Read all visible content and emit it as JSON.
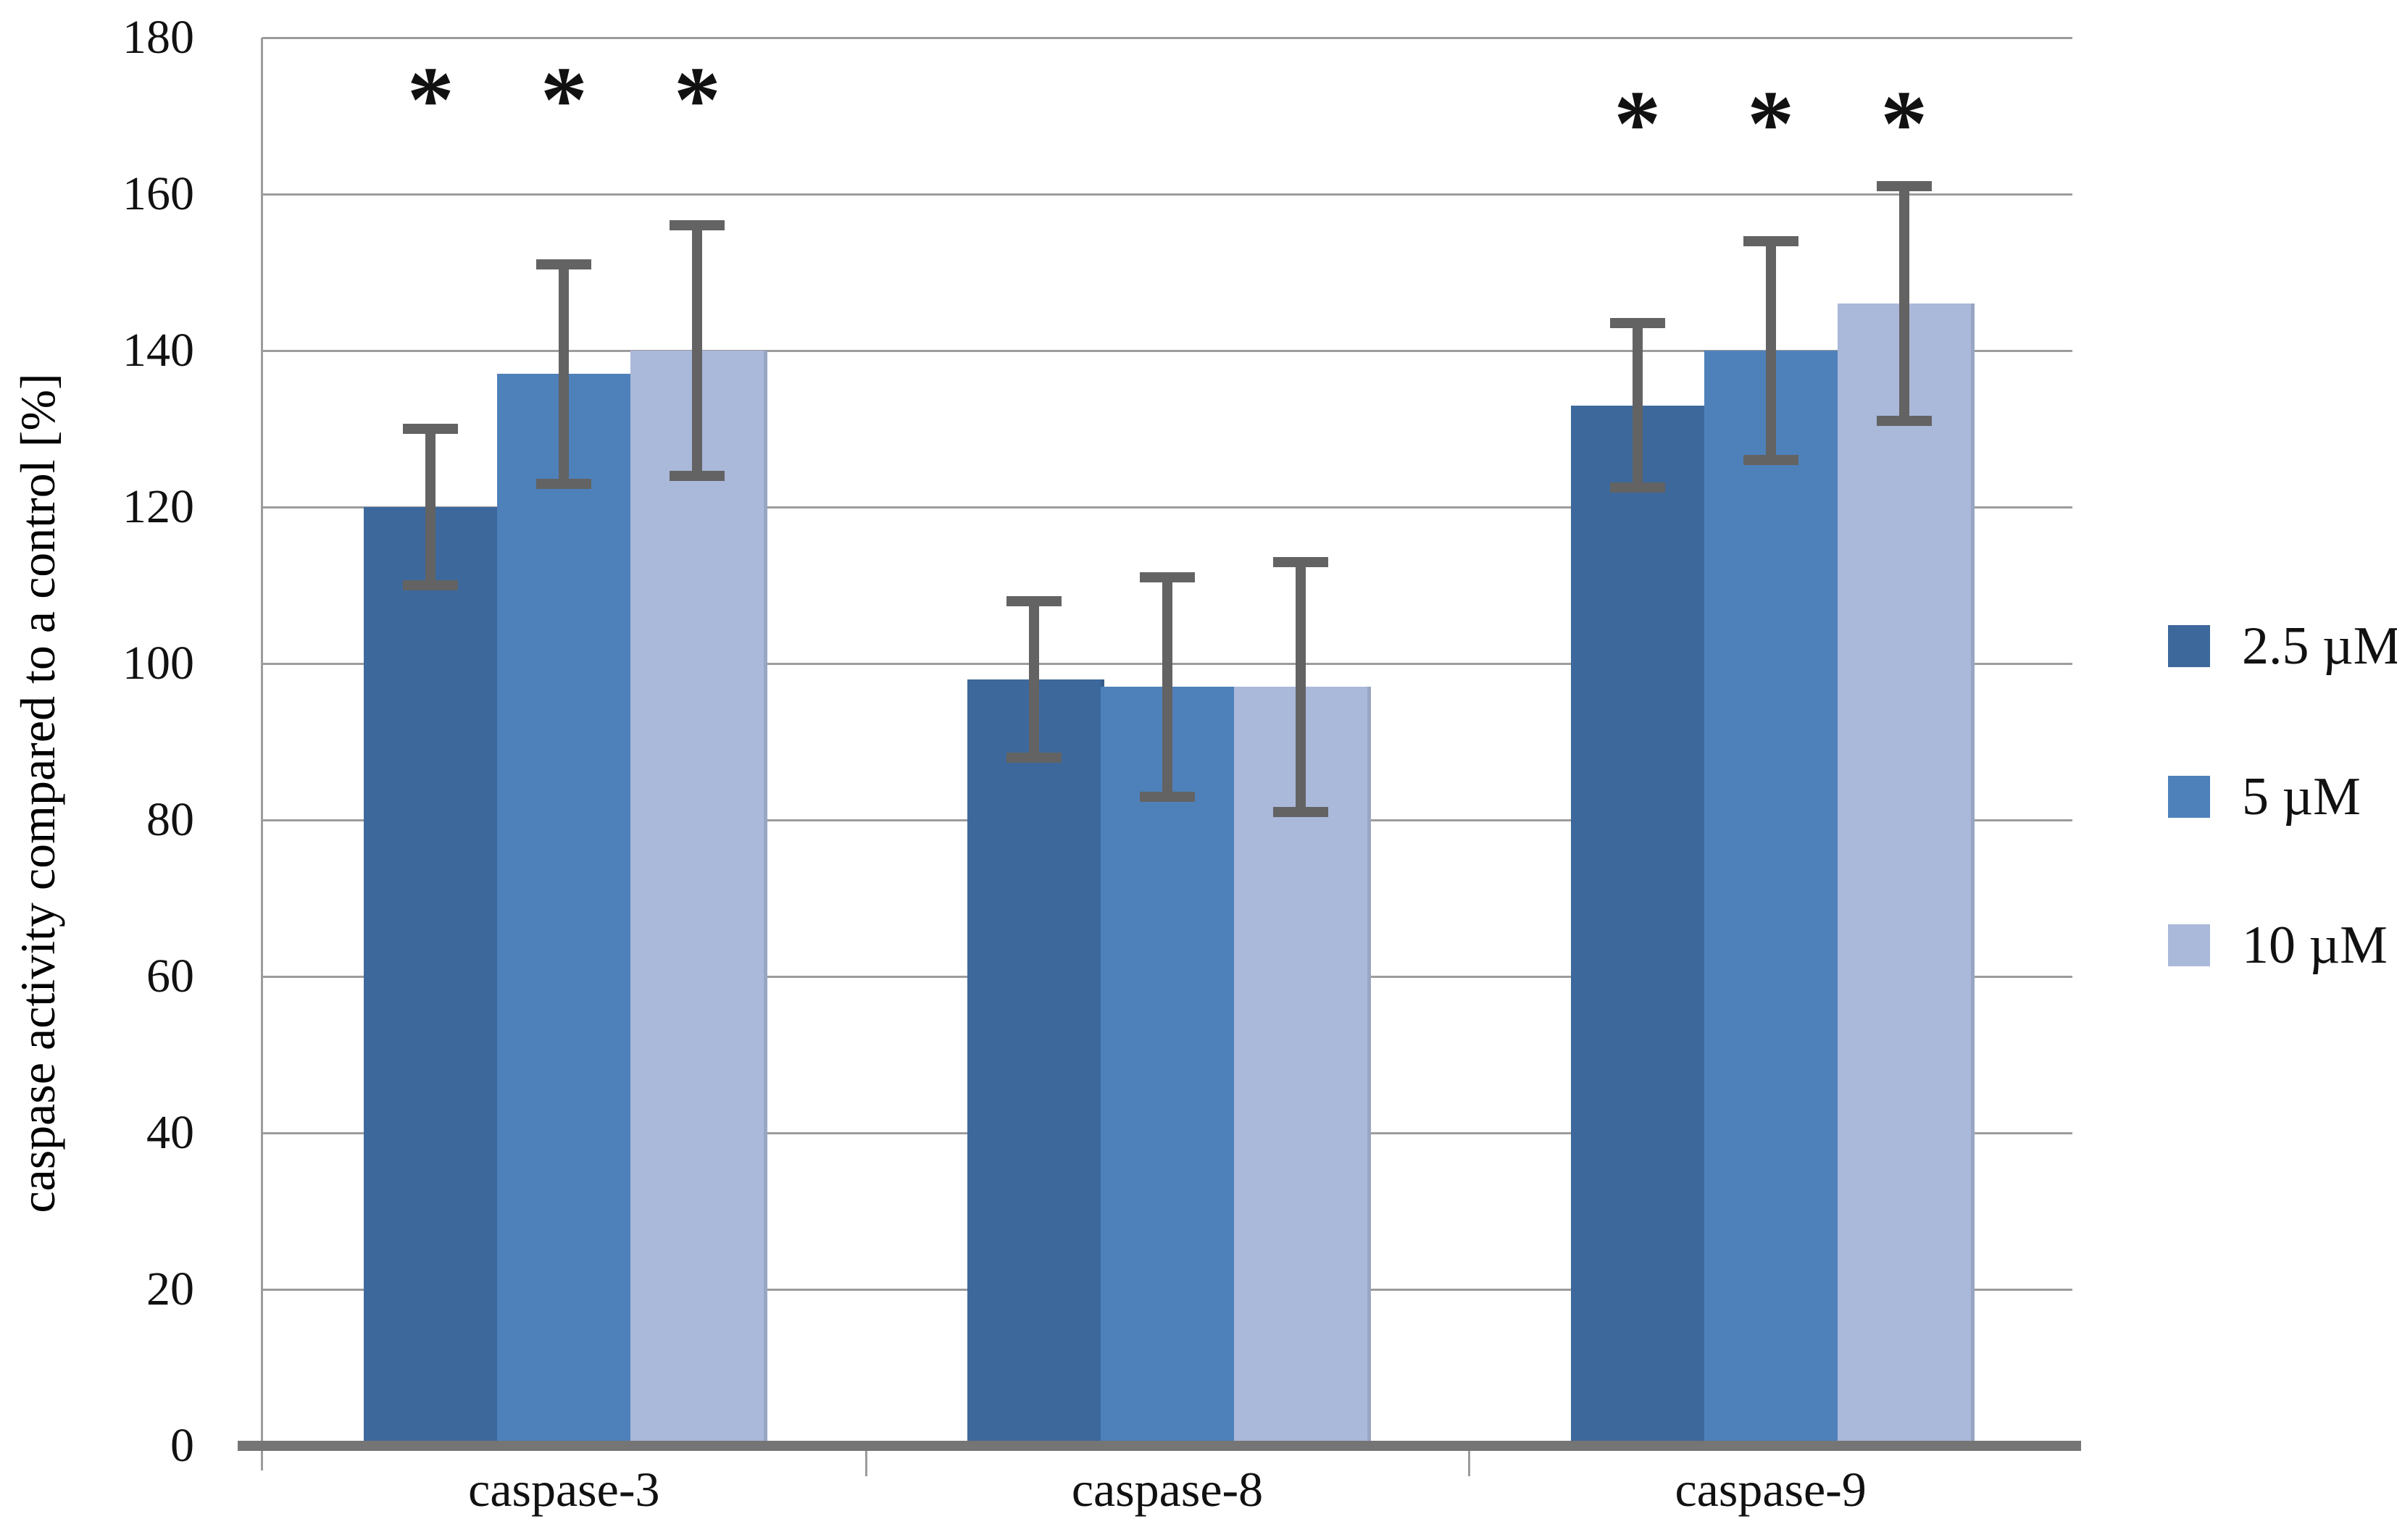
{
  "chart_data": {
    "type": "bar",
    "title": "",
    "xlabel": "",
    "ylabel": "caspase activity compared to a control [%]",
    "categories": [
      "caspase-3",
      "caspase-8",
      "caspase-9"
    ],
    "series": [
      {
        "name": "2.5 µM",
        "color": "#3d689c",
        "values": [
          120,
          98,
          133
        ],
        "errors": [
          10,
          10,
          10.5
        ]
      },
      {
        "name": "5 µM",
        "color": "#4e81ba",
        "values": [
          137,
          97,
          140
        ],
        "errors": [
          14,
          14,
          14
        ]
      },
      {
        "name": "10 µM",
        "color": "#aab8da",
        "values": [
          140,
          97,
          146
        ],
        "errors": [
          16,
          16,
          15
        ]
      }
    ],
    "significance": {
      "marker": "*",
      "per_category": [
        [
          true,
          true,
          true
        ],
        [
          false,
          false,
          false
        ],
        [
          true,
          true,
          true
        ]
      ],
      "marker_y_value": [
        172,
        null,
        169
      ]
    },
    "ylim": [
      0,
      180
    ],
    "yticks": [
      0,
      20,
      40,
      60,
      80,
      100,
      120,
      140,
      160,
      180
    ],
    "grid": true,
    "legend_position": "right"
  },
  "colors": {
    "gridline": "#9c9c9c",
    "axis_line": "#9c9c9c",
    "baseline": "#757575",
    "error_bar": "#636363",
    "text": "#111111",
    "background": "#ffffff"
  }
}
